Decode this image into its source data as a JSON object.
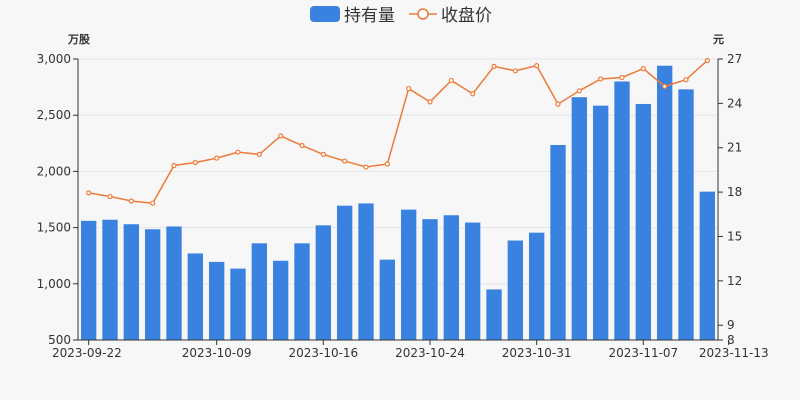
{
  "chart_data": {
    "type": "bar+line",
    "legend": {
      "placement": "top-center",
      "items": [
        {
          "label": "持有量",
          "icon": "bar-swatch",
          "color": "#3a82e0"
        },
        {
          "label": "收盘价",
          "icon": "line-circle-marker",
          "color": "#ec7b3a"
        }
      ]
    },
    "y_left": {
      "unit_label": "万股",
      "range": [
        500,
        3000
      ],
      "ticks": [
        "3,000",
        "2,500",
        "2,000",
        "1,500",
        "1,000",
        "500"
      ]
    },
    "y_right": {
      "unit_label": "元",
      "range": [
        8,
        27
      ],
      "ticks": [
        "27",
        "24",
        "21",
        "18",
        "15",
        "12",
        "9",
        "8"
      ]
    },
    "x_tick_labels": [
      "2023-09-22",
      "2023-10-09",
      "2023-10-16",
      "2023-10-24",
      "2023-10-31",
      "2023-11-07",
      "2023-11-13"
    ],
    "x_tick_indices": [
      0,
      6,
      11,
      16,
      21,
      26,
      30
    ],
    "bars": {
      "name": "持有量",
      "color": "#3a82e0",
      "values": [
        1560,
        1570,
        1530,
        1485,
        1510,
        1270,
        1195,
        1135,
        1360,
        1205,
        1360,
        1520,
        1695,
        1715,
        1215,
        1660,
        1575,
        1610,
        1545,
        950,
        1385,
        1455,
        2235,
        2660,
        2585,
        2800,
        2600,
        2940,
        2730,
        1820
      ]
    },
    "line": {
      "name": "收盘价",
      "color": "#ec7b3a",
      "values": [
        17.95,
        17.7,
        17.4,
        17.25,
        19.8,
        20.0,
        20.3,
        20.7,
        20.55,
        21.8,
        21.15,
        20.55,
        20.1,
        19.7,
        19.9,
        25.0,
        24.1,
        25.55,
        24.65,
        26.5,
        26.2,
        26.55,
        23.95,
        24.85,
        25.65,
        25.75,
        26.35,
        25.15,
        25.6,
        26.9
      ]
    }
  }
}
